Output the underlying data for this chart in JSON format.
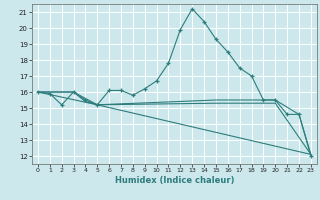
{
  "title": "",
  "xlabel": "Humidex (Indice chaleur)",
  "ylabel": "",
  "xlim": [
    -0.5,
    23.5
  ],
  "ylim": [
    11.5,
    21.5
  ],
  "yticks": [
    12,
    13,
    14,
    15,
    16,
    17,
    18,
    19,
    20,
    21
  ],
  "xticks": [
    0,
    1,
    2,
    3,
    4,
    5,
    6,
    7,
    8,
    9,
    10,
    11,
    12,
    13,
    14,
    15,
    16,
    17,
    18,
    19,
    20,
    21,
    22,
    23
  ],
  "bg_color": "#cce8ec",
  "line_color": "#2e7d7d",
  "grid_color": "#ffffff",
  "series": [
    {
      "x": [
        0,
        1,
        2,
        3,
        4,
        5,
        6,
        7,
        8,
        9,
        10,
        11,
        12,
        13,
        14,
        15,
        16,
        17,
        18,
        19,
        20,
        21,
        22,
        23
      ],
      "y": [
        16.0,
        15.9,
        15.2,
        16.0,
        15.5,
        15.2,
        16.1,
        16.1,
        15.8,
        16.2,
        16.7,
        17.8,
        19.9,
        21.2,
        20.4,
        19.3,
        18.5,
        17.5,
        17.0,
        15.5,
        15.5,
        14.6,
        14.6,
        12.0
      ],
      "marker": "+"
    },
    {
      "x": [
        0,
        3,
        4,
        5,
        15,
        20,
        22,
        23
      ],
      "y": [
        16.0,
        16.0,
        15.4,
        15.2,
        15.5,
        15.5,
        14.6,
        12.1
      ],
      "marker": null
    },
    {
      "x": [
        0,
        3,
        5,
        15,
        20,
        23
      ],
      "y": [
        16.0,
        16.0,
        15.2,
        15.3,
        15.3,
        12.1
      ],
      "marker": null
    },
    {
      "x": [
        0,
        5,
        23
      ],
      "y": [
        16.0,
        15.2,
        12.1
      ],
      "marker": null
    }
  ]
}
